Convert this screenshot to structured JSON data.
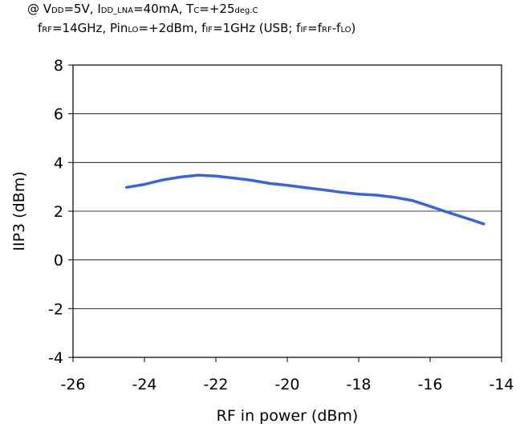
{
  "conditions": {
    "line1": [
      {
        "t": "@ V",
        "sub": false
      },
      {
        "t": "DD",
        "sub": true
      },
      {
        "t": "=5V, I",
        "sub": false
      },
      {
        "t": "DD_LNA",
        "sub": true
      },
      {
        "t": "=40mA, T",
        "sub": false
      },
      {
        "t": "C",
        "sub": true
      },
      {
        "t": "=+25",
        "sub": false
      },
      {
        "t": "deg.C",
        "sub": true
      }
    ],
    "line2": [
      {
        "t": "f",
        "sub": false
      },
      {
        "t": "RF",
        "sub": true
      },
      {
        "t": "=14GHz, Pin",
        "sub": false
      },
      {
        "t": "LO",
        "sub": true
      },
      {
        "t": "=+2dBm, f",
        "sub": false
      },
      {
        "t": "IF",
        "sub": true
      },
      {
        "t": "=1GHz (USB; f",
        "sub": false
      },
      {
        "t": "IF",
        "sub": true
      },
      {
        "t": "=f",
        "sub": false
      },
      {
        "t": "RF",
        "sub": true
      },
      {
        "t": "-f",
        "sub": false
      },
      {
        "t": "LO",
        "sub": true
      },
      {
        "t": ")",
        "sub": false
      }
    ]
  },
  "chart_data": {
    "type": "line",
    "xlabel": "RF in power (dBm)",
    "ylabel": "IIP3 (dBm)",
    "xlim": [
      -26,
      -14
    ],
    "ylim": [
      -4,
      8
    ],
    "xticks": [
      -26,
      -24,
      -22,
      -20,
      -18,
      -16,
      -14
    ],
    "yticks": [
      -4,
      -2,
      0,
      2,
      4,
      6,
      8
    ],
    "grid": "horizontal",
    "series": [
      {
        "color": "#3a63e0",
        "x": [
          -24.5,
          -24,
          -23.5,
          -23,
          -22.5,
          -22,
          -21.5,
          -21,
          -20.5,
          -20,
          -19.5,
          -19,
          -18.5,
          -18,
          -17.5,
          -17,
          -16.5,
          -16,
          -15.5,
          -15,
          -14.5
        ],
        "y": [
          2.98,
          3.1,
          3.28,
          3.4,
          3.48,
          3.44,
          3.36,
          3.27,
          3.14,
          3.06,
          2.97,
          2.88,
          2.78,
          2.7,
          2.66,
          2.57,
          2.44,
          2.2,
          1.95,
          1.72,
          1.48
        ]
      }
    ]
  }
}
